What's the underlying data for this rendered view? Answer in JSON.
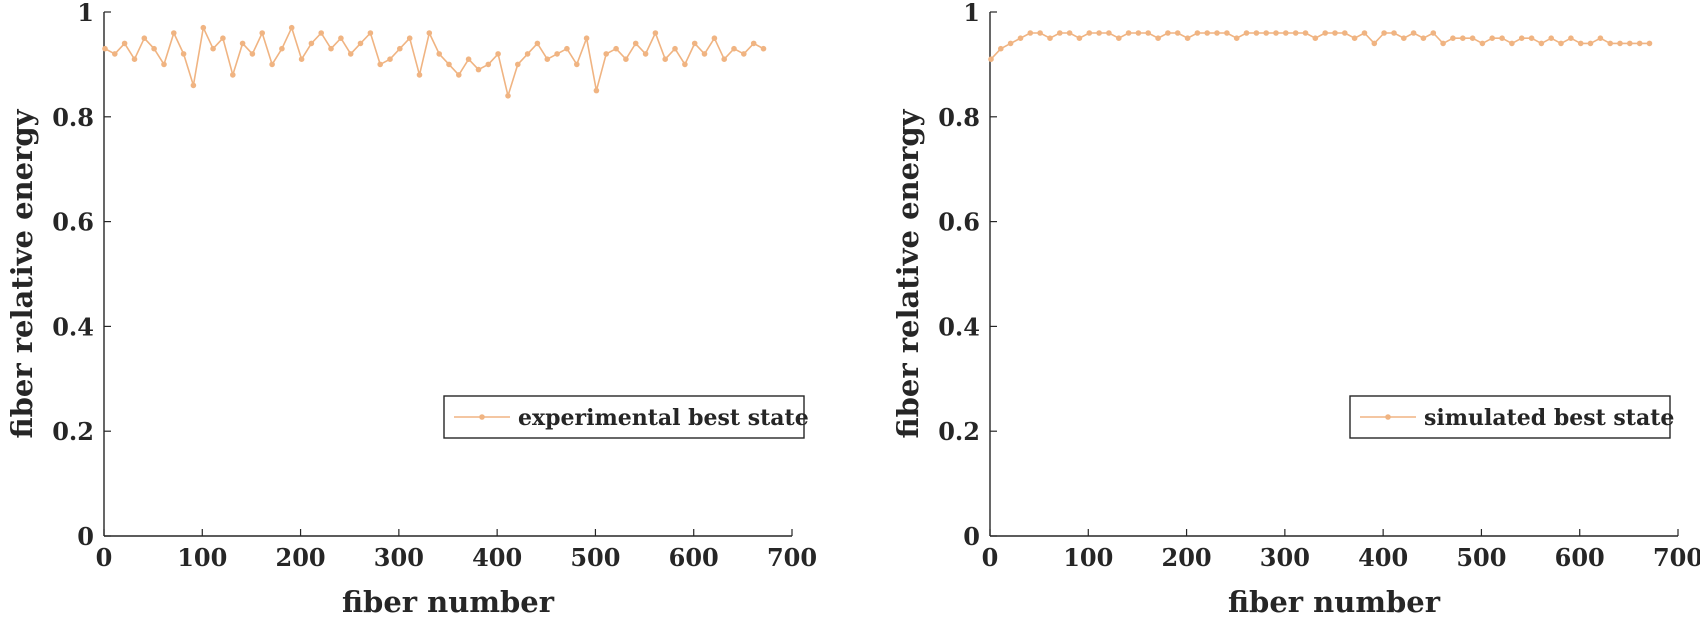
{
  "colors": {
    "series": "#f0b482",
    "axis": "#262626",
    "background": "#ffffff"
  },
  "chart_data": [
    {
      "type": "line",
      "xlabel": "fiber number",
      "ylabel": "fiber relative energy",
      "xlim": [
        0,
        700
      ],
      "ylim": [
        0,
        1
      ],
      "xticks": [
        0,
        100,
        200,
        300,
        400,
        500,
        600,
        700
      ],
      "yticks": [
        0,
        0.2,
        0.4,
        0.6,
        0.8,
        1
      ],
      "ytick_labels": [
        "0",
        "0.2",
        "0.4",
        "0.6",
        "0.8",
        "1"
      ],
      "grid": false,
      "legend_position": "lower-right",
      "series": [
        {
          "name": "experimental best state",
          "x_start": 1,
          "x_step": 10,
          "values": [
            0.93,
            0.92,
            0.94,
            0.91,
            0.95,
            0.93,
            0.9,
            0.96,
            0.92,
            0.86,
            0.97,
            0.93,
            0.95,
            0.88,
            0.94,
            0.92,
            0.96,
            0.9,
            0.93,
            0.97,
            0.91,
            0.94,
            0.96,
            0.93,
            0.95,
            0.92,
            0.94,
            0.96,
            0.9,
            0.91,
            0.93,
            0.95,
            0.88,
            0.96,
            0.92,
            0.9,
            0.88,
            0.91,
            0.89,
            0.9,
            0.92,
            0.84,
            0.9,
            0.92,
            0.94,
            0.91,
            0.92,
            0.93,
            0.9,
            0.95,
            0.85,
            0.92,
            0.93,
            0.91,
            0.94,
            0.92,
            0.96,
            0.91,
            0.93,
            0.9,
            0.94,
            0.92,
            0.95,
            0.91,
            0.93,
            0.92,
            0.94,
            0.93
          ]
        }
      ]
    },
    {
      "type": "line",
      "xlabel": "fiber number",
      "ylabel": "fiber relative energy",
      "xlim": [
        0,
        700
      ],
      "ylim": [
        0,
        1
      ],
      "xticks": [
        0,
        100,
        200,
        300,
        400,
        500,
        600,
        700
      ],
      "yticks": [
        0,
        0.2,
        0.4,
        0.6,
        0.8,
        1
      ],
      "ytick_labels": [
        "0",
        "0.2",
        "0.4",
        "0.6",
        "0.8",
        "1"
      ],
      "grid": false,
      "legend_position": "lower-right",
      "series": [
        {
          "name": "simulated best state",
          "x_start": 1,
          "x_step": 10,
          "values": [
            0.91,
            0.93,
            0.94,
            0.95,
            0.96,
            0.96,
            0.95,
            0.96,
            0.96,
            0.95,
            0.96,
            0.96,
            0.96,
            0.95,
            0.96,
            0.96,
            0.96,
            0.95,
            0.96,
            0.96,
            0.95,
            0.96,
            0.96,
            0.96,
            0.96,
            0.95,
            0.96,
            0.96,
            0.96,
            0.96,
            0.96,
            0.96,
            0.96,
            0.95,
            0.96,
            0.96,
            0.96,
            0.95,
            0.96,
            0.94,
            0.96,
            0.96,
            0.95,
            0.96,
            0.95,
            0.96,
            0.94,
            0.95,
            0.95,
            0.95,
            0.94,
            0.95,
            0.95,
            0.94,
            0.95,
            0.95,
            0.94,
            0.95,
            0.94,
            0.95,
            0.94,
            0.94,
            0.95,
            0.94,
            0.94,
            0.94,
            0.94,
            0.94
          ]
        }
      ]
    }
  ]
}
